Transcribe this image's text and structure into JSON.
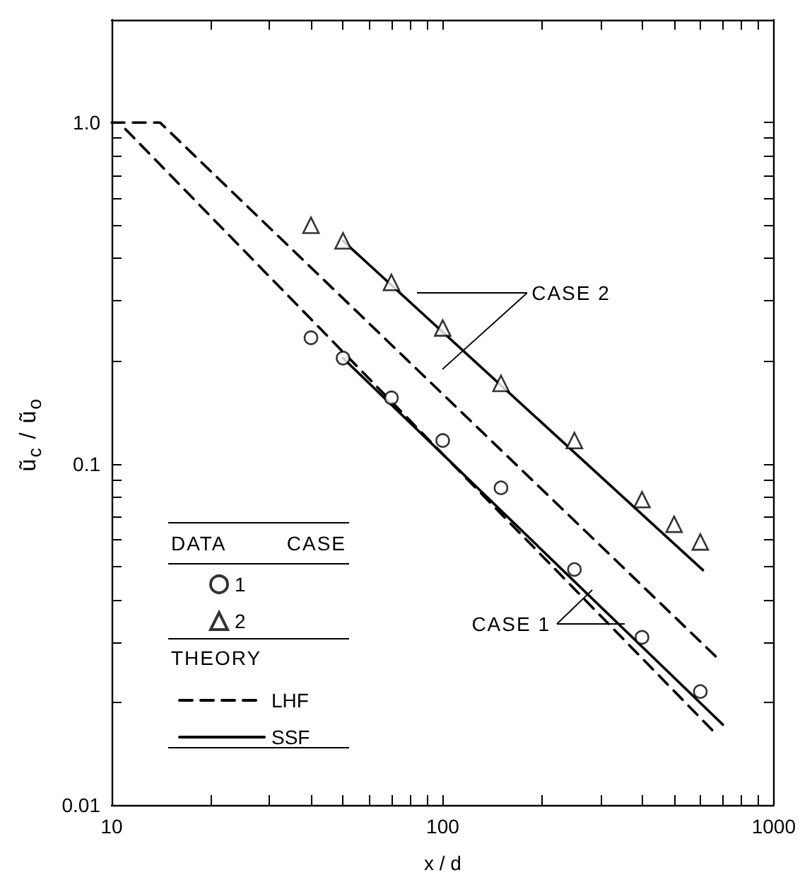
{
  "chart_data": {
    "type": "scatter",
    "xlabel": "x / d",
    "ylabel": "ũ$_{c}$ / ũ$_{o}$",
    "log": "xy",
    "grid": false,
    "legend": "bottom left",
    "xlim": [
      10,
      1000
    ],
    "ylim": [
      0.01,
      2
    ],
    "xticks": [
      10,
      {
        "value": 20,
        "label": null
      },
      {
        "value": 30,
        "label": null
      },
      {
        "value": 40,
        "label": null
      },
      {
        "value": 50,
        "label": null
      },
      {
        "value": 60,
        "label": null
      },
      {
        "value": 70,
        "label": null
      },
      {
        "value": 80,
        "label": null
      },
      {
        "value": 90,
        "label": null
      },
      100,
      {
        "value": 200,
        "label": null
      },
      {
        "value": 300,
        "label": null
      },
      {
        "value": 400,
        "label": null
      },
      {
        "value": 500,
        "label": null
      },
      {
        "value": 600,
        "label": null
      },
      {
        "value": 700,
        "label": null
      },
      {
        "value": 800,
        "label": null
      },
      {
        "value": 900,
        "label": null
      },
      1000
    ],
    "yticks": [
      0.01,
      {
        "value": 0.02,
        "label": null
      },
      {
        "value": 0.03,
        "label": null
      },
      {
        "value": 0.04,
        "label": null
      },
      {
        "value": 0.05,
        "label": null
      },
      {
        "value": 0.06,
        "label": null
      },
      {
        "value": 0.07,
        "label": null
      },
      {
        "value": 0.08,
        "label": null
      },
      {
        "value": 0.09,
        "label": null
      },
      0.1,
      {
        "value": 0.2,
        "label": null
      },
      {
        "value": 0.3,
        "label": null
      },
      {
        "value": 0.4,
        "label": null
      },
      {
        "value": 0.5,
        "label": null
      },
      {
        "value": 0.6,
        "label": null
      },
      {
        "value": 0.7,
        "label": null
      },
      {
        "value": 0.8,
        "label": null
      },
      {
        "value": 0.9,
        "label": null
      },
      {
        "value": 1,
        "label": "1.0"
      }
    ],
    "annotations": [
      "DATA",
      "CASE",
      "THEORY",
      "CASE 2",
      "CASE 1"
    ],
    "series": [
      {
        "name": "1",
        "marker": "circle",
        "color": "#000000",
        "x": [
          40,
          50,
          70,
          100,
          150,
          250,
          400,
          600
        ],
        "values": [
          0.234,
          0.204,
          0.156,
          0.117,
          0.085,
          0.049,
          0.031,
          0.0215
        ]
      },
      {
        "name": "2",
        "marker": "triangle",
        "color": "#000000",
        "x": [
          40,
          50,
          70,
          100,
          150,
          250,
          400,
          500,
          600
        ],
        "values": [
          0.5,
          0.45,
          0.34,
          0.25,
          0.172,
          0.117,
          0.0785,
          0.0665,
          0.059
        ]
      },
      {
        "name": "LHF",
        "type": "line",
        "line_style": "dashed",
        "color": "#000000",
        "x": [
          10,
          14,
          683
        ],
        "values": [
          1,
          1,
          0.0267
        ]
      },
      {
        "type": "line",
        "line_style": "dashed",
        "color": "#000000",
        "x": [
          11,
          655
        ],
        "values": [
          0.957,
          0.0165
        ]
      },
      {
        "name": "SSF",
        "type": "line",
        "line_style": "solid",
        "color": "#000000",
        "x": [
          50,
          611
        ],
        "values": [
          0.45,
          0.0488
        ]
      },
      {
        "type": "line",
        "line_style": "solid",
        "color": "#000000",
        "x": [
          50,
          702
        ],
        "values": [
          0.204,
          0.0172
        ]
      }
    ]
  }
}
